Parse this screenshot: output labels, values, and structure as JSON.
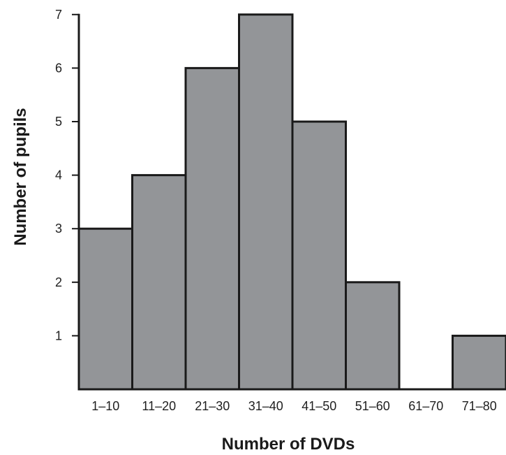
{
  "chart_data": {
    "type": "bar",
    "categories": [
      "1–10",
      "11–20",
      "21–30",
      "31–40",
      "41–50",
      "51–60",
      "61–70",
      "71–80"
    ],
    "values": [
      3,
      4,
      6,
      7,
      5,
      2,
      0,
      1
    ],
    "title": "",
    "xlabel": "Number of DVDs",
    "ylabel": "Number of pupils",
    "ylim": [
      0,
      7
    ],
    "yticks": [
      "1",
      "2",
      "3",
      "4",
      "5",
      "6",
      "7"
    ],
    "grid": false,
    "bar_color": "#939598",
    "edge_color": "#1a1a1a"
  }
}
